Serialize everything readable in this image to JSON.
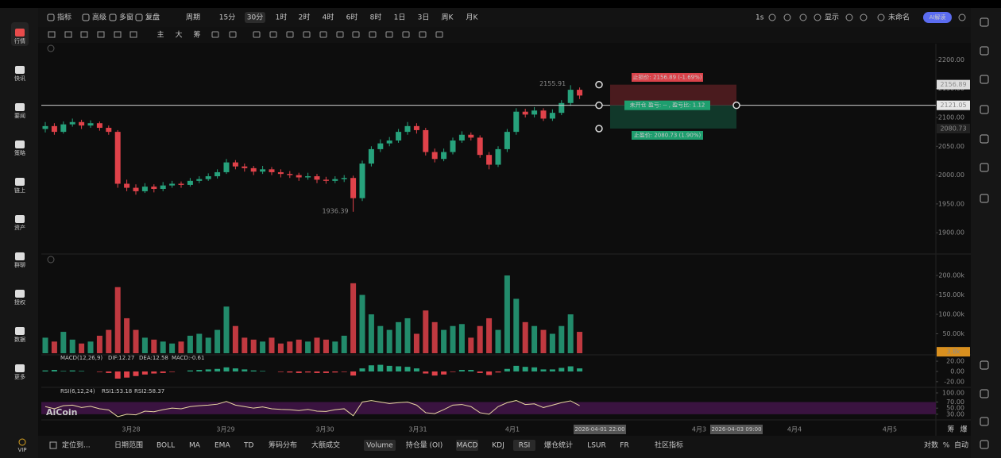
{
  "top_bar": {
    "left": [
      "指标",
      "高级",
      "多窗",
      "复盘"
    ],
    "period_label": "周期",
    "periods": [
      "15分",
      "30分",
      "1时",
      "2时",
      "4时",
      "6时",
      "8时",
      "1日",
      "3日",
      "周K",
      "月K"
    ],
    "right": [
      "1s",
      "显示",
      "未命名",
      "AI解读"
    ]
  },
  "draw_bar": {
    "items": [
      "主",
      "大",
      "筹"
    ]
  },
  "sidebar": {
    "items": [
      "行情",
      "快讯",
      "要闻",
      "策略",
      "链上",
      "资产",
      "群聊",
      "授权",
      "数据",
      "更多"
    ],
    "vip": "VIP"
  },
  "price_chart": {
    "ylim": [
      1870,
      2228
    ],
    "yticks": [
      {
        "value": 1900,
        "label": "1900.00"
      },
      {
        "value": 1950,
        "label": "1950.00"
      },
      {
        "value": 2000,
        "label": "2000.00"
      },
      {
        "value": 2050,
        "label": "2050.00"
      },
      {
        "value": 2100,
        "label": "2100.00"
      },
      {
        "value": 2150,
        "label": "2150.00"
      },
      {
        "value": 2200,
        "label": "2200.00"
      }
    ],
    "candles": [
      [
        2080,
        2092,
        2074,
        2085
      ],
      [
        2085,
        2090,
        2070,
        2075
      ],
      [
        2075,
        2093,
        2072,
        2088
      ],
      [
        2088,
        2098,
        2084,
        2092
      ],
      [
        2092,
        2096,
        2080,
        2086
      ],
      [
        2086,
        2095,
        2082,
        2090
      ],
      [
        2090,
        2093,
        2077,
        2082
      ],
      [
        2082,
        2086,
        2070,
        2075
      ],
      [
        2075,
        2078,
        1978,
        1985
      ],
      [
        1985,
        1992,
        1972,
        1978
      ],
      [
        1978,
        1984,
        1966,
        1972
      ],
      [
        1972,
        1986,
        1969,
        1980
      ],
      [
        1980,
        1984,
        1970,
        1976
      ],
      [
        1976,
        1988,
        1972,
        1982
      ],
      [
        1982,
        1990,
        1978,
        1985
      ],
      [
        1985,
        1989,
        1978,
        1983
      ],
      [
        1983,
        1995,
        1980,
        1990
      ],
      [
        1990,
        1998,
        1986,
        1993
      ],
      [
        1993,
        2003,
        1990,
        1998
      ],
      [
        1998,
        2010,
        1994,
        2005
      ],
      [
        2005,
        2028,
        2002,
        2022
      ],
      [
        2022,
        2026,
        2010,
        2015
      ],
      [
        2015,
        2020,
        2006,
        2012
      ],
      [
        2012,
        2016,
        2000,
        2006
      ],
      [
        2006,
        2016,
        2002,
        2010
      ],
      [
        2010,
        2014,
        2000,
        2005
      ],
      [
        2005,
        2010,
        1996,
        2002
      ],
      [
        2002,
        2007,
        1995,
        2000
      ],
      [
        2000,
        2004,
        1990,
        1996
      ],
      [
        1996,
        2004,
        1992,
        1998
      ],
      [
        1998,
        2002,
        1986,
        1992
      ],
      [
        1992,
        1997,
        1985,
        1990
      ],
      [
        1990,
        1998,
        1986,
        1993
      ],
      [
        1993,
        2000,
        1988,
        1995
      ],
      [
        1995,
        1999,
        1936.39,
        1960
      ],
      [
        1960,
        2025,
        1955,
        2020
      ],
      [
        2020,
        2050,
        2015,
        2045
      ],
      [
        2045,
        2062,
        2040,
        2055
      ],
      [
        2055,
        2066,
        2050,
        2060
      ],
      [
        2060,
        2080,
        2056,
        2075
      ],
      [
        2075,
        2092,
        2070,
        2085
      ],
      [
        2085,
        2090,
        2072,
        2078
      ],
      [
        2078,
        2082,
        2034,
        2040
      ],
      [
        2040,
        2046,
        2022,
        2028
      ],
      [
        2028,
        2046,
        2024,
        2040
      ],
      [
        2040,
        2065,
        2036,
        2060
      ],
      [
        2060,
        2076,
        2056,
        2070
      ],
      [
        2070,
        2074,
        2060,
        2065
      ],
      [
        2065,
        2069,
        2030,
        2035
      ],
      [
        2035,
        2040,
        2010,
        2018
      ],
      [
        2018,
        2050,
        2014,
        2045
      ],
      [
        2045,
        2080,
        2040,
        2075
      ],
      [
        2075,
        2116,
        2070,
        2110
      ],
      [
        2110,
        2115,
        2100,
        2105
      ],
      [
        2105,
        2118,
        2100,
        2112
      ],
      [
        2112,
        2116,
        2094,
        2098
      ],
      [
        2098,
        2114,
        2094,
        2108
      ],
      [
        2108,
        2130,
        2104,
        2125
      ],
      [
        2125,
        2155.91,
        2120,
        2148
      ],
      [
        2148,
        2152,
        2132,
        2138
      ]
    ],
    "current_price": 2121.05
  },
  "order": {
    "stop_loss": 2156.89,
    "stop_loss_label": "止损价: 2156.89 (-1.69%)",
    "status_label": "未开仓  盈亏: -- , 盈亏比: 1.12",
    "take_profit": 2080.73,
    "take_profit_label": "止盈价: 2080.73 (1.90%)"
  },
  "volume": {
    "ylim": [
      0,
      245
    ],
    "yticks": [
      {
        "value": 50,
        "label": "50.00k"
      },
      {
        "value": 100,
        "label": "100.00k"
      },
      {
        "value": 150,
        "label": "150.00k"
      },
      {
        "value": 200,
        "label": "200.00k"
      }
    ],
    "values": [
      40,
      30,
      55,
      35,
      25,
      30,
      45,
      60,
      170,
      90,
      60,
      40,
      35,
      30,
      25,
      30,
      45,
      50,
      40,
      60,
      120,
      70,
      40,
      35,
      30,
      40,
      25,
      30,
      35,
      30,
      40,
      35,
      30,
      45,
      180,
      150,
      100,
      70,
      60,
      80,
      90,
      50,
      110,
      80,
      60,
      70,
      75,
      40,
      70,
      90,
      60,
      200,
      140,
      80,
      70,
      60,
      50,
      70,
      100,
      55
    ],
    "last": {
      "value": 3.8,
      "label": "3.8k"
    }
  },
  "macd": {
    "legend": {
      "name": "MACD(12,26,9)",
      "dif": "DIF:12.27",
      "dea": "DEA:12.58",
      "macd": "MACD:-0.61"
    },
    "ylim": [
      -28,
      31
    ],
    "yticks": [
      {
        "value": 20,
        "label": "20.00"
      },
      {
        "value": 0,
        "label": "0.00"
      },
      {
        "value": -20,
        "label": "-20.00"
      }
    ],
    "histogram": [
      2,
      3,
      1,
      2,
      1,
      0,
      -1,
      -3,
      -14,
      -12,
      -9,
      -6,
      -4,
      -3,
      -1,
      0,
      2,
      3,
      4,
      5,
      8,
      6,
      4,
      2,
      1,
      0,
      -1,
      -2,
      -3,
      -2,
      -3,
      -3,
      -2,
      -1,
      -8,
      6,
      12,
      13,
      11,
      10,
      9,
      6,
      -4,
      -8,
      -6,
      -1,
      3,
      3,
      -3,
      -7,
      -2,
      5,
      11,
      9,
      8,
      4,
      4,
      7,
      10,
      6
    ]
  },
  "rsi": {
    "legend": {
      "name": "RSI(6,12,24)",
      "rsi1": "RSI1:53.18",
      "rsi2": "RSI2:58.37"
    },
    "ylim": [
      14,
      113
    ],
    "yticks": [
      {
        "value": 100,
        "label": "100.00"
      },
      {
        "value": 70,
        "label": "70.00"
      },
      {
        "value": 50,
        "label": "50.00"
      },
      {
        "value": 30,
        "label": "30.00"
      }
    ],
    "band": [
      30,
      70
    ],
    "values": [
      55,
      48,
      58,
      60,
      52,
      56,
      48,
      44,
      22,
      30,
      28,
      40,
      38,
      45,
      50,
      48,
      55,
      58,
      60,
      63,
      72,
      60,
      55,
      50,
      54,
      48,
      46,
      45,
      42,
      46,
      40,
      39,
      45,
      48,
      25,
      70,
      75,
      70,
      65,
      68,
      70,
      60,
      35,
      32,
      45,
      60,
      62,
      55,
      35,
      30,
      55,
      68,
      75,
      62,
      64,
      52,
      60,
      68,
      74,
      58
    ]
  },
  "time_axis": {
    "labels": [
      "3月28",
      "3月29",
      "3月30",
      "3月31",
      "4月1",
      "4月3",
      "4月4",
      "4月5"
    ],
    "crosshair": [
      "2026-04-01 22:00",
      "2026-04-03 09:00"
    ]
  },
  "watermark": "AiCoin",
  "bottom_bar": {
    "left": [
      "定位到...",
      "日期范围"
    ],
    "indicators": [
      "BOLL",
      "MA",
      "EMA",
      "TD",
      "筹码分布",
      "大额成交"
    ],
    "subs": [
      "Volume",
      "持仓量 (OI)",
      "MACD",
      "KDJ",
      "RSI",
      "爆仓统计",
      "LSUR",
      "FR",
      "社区指标"
    ],
    "right": [
      "对数",
      "%",
      "自动"
    ]
  },
  "corner": [
    "筹",
    "爆"
  ]
}
